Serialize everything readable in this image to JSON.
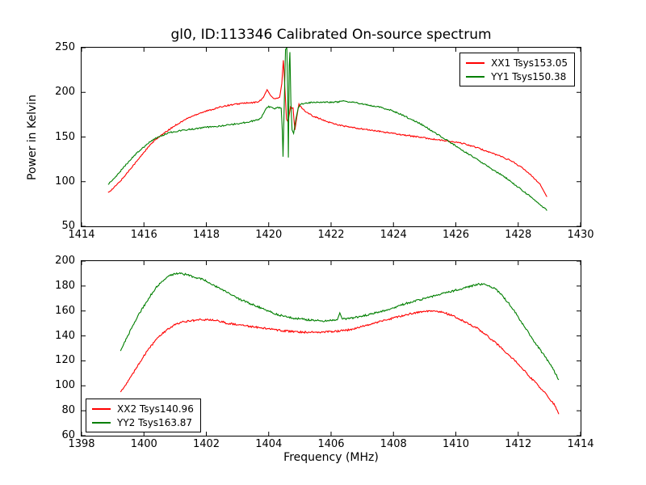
{
  "figure": {
    "title": "gl0, ID:113346 Calibrated On-source spectrum",
    "background": "#ffffff",
    "text_color": "#000000"
  },
  "chart_data": [
    {
      "type": "line",
      "xlabel": "",
      "ylabel": "Power in Kelvin",
      "xlim": [
        1414,
        1430
      ],
      "ylim": [
        50,
        250
      ],
      "xticks": [
        1414,
        1416,
        1418,
        1420,
        1422,
        1424,
        1426,
        1428,
        1430
      ],
      "yticks": [
        50,
        100,
        150,
        200,
        250
      ],
      "grid": false,
      "legend_position": "upper right",
      "series": [
        {
          "name": "XX1 Tsys153.05",
          "color": "#ff0000",
          "points": [
            [
              1414.85,
              88
            ],
            [
              1415.0,
              92
            ],
            [
              1415.2,
              99
            ],
            [
              1415.4,
              107
            ],
            [
              1415.6,
              116
            ],
            [
              1415.8,
              124
            ],
            [
              1416.0,
              133
            ],
            [
              1416.2,
              141
            ],
            [
              1416.4,
              148
            ],
            [
              1416.6,
              153
            ],
            [
              1416.8,
              158
            ],
            [
              1417.0,
              163
            ],
            [
              1417.2,
              167
            ],
            [
              1417.4,
              171
            ],
            [
              1417.6,
              174
            ],
            [
              1417.8,
              177
            ],
            [
              1418.0,
              179
            ],
            [
              1418.2,
              181
            ],
            [
              1418.4,
              183
            ],
            [
              1418.6,
              185
            ],
            [
              1418.8,
              186
            ],
            [
              1419.0,
              187
            ],
            [
              1419.2,
              188
            ],
            [
              1419.4,
              188
            ],
            [
              1419.6,
              189
            ],
            [
              1419.75,
              191
            ],
            [
              1419.85,
              196
            ],
            [
              1419.95,
              203
            ],
            [
              1420.05,
              197
            ],
            [
              1420.15,
              193
            ],
            [
              1420.25,
              193
            ],
            [
              1420.35,
              194
            ],
            [
              1420.42,
              210
            ],
            [
              1420.47,
              236
            ],
            [
              1420.52,
              205
            ],
            [
              1420.57,
              170
            ],
            [
              1420.62,
              167
            ],
            [
              1420.7,
              184
            ],
            [
              1420.78,
              182
            ],
            [
              1420.84,
              158
            ],
            [
              1420.9,
              172
            ],
            [
              1420.97,
              187
            ],
            [
              1421.05,
              183
            ],
            [
              1421.2,
              178
            ],
            [
              1421.4,
              174
            ],
            [
              1421.6,
              171
            ],
            [
              1421.8,
              168
            ],
            [
              1422.0,
              166
            ],
            [
              1422.3,
              163
            ],
            [
              1422.6,
              161
            ],
            [
              1423.0,
              159
            ],
            [
              1423.4,
              157
            ],
            [
              1423.8,
              155
            ],
            [
              1424.2,
              153
            ],
            [
              1424.6,
              151
            ],
            [
              1425.0,
              149
            ],
            [
              1425.4,
              147
            ],
            [
              1425.8,
              145
            ],
            [
              1426.2,
              143
            ],
            [
              1426.6,
              139
            ],
            [
              1427.0,
              134
            ],
            [
              1427.4,
              129
            ],
            [
              1427.8,
              123
            ],
            [
              1428.1,
              116
            ],
            [
              1428.4,
              108
            ],
            [
              1428.7,
              97
            ],
            [
              1428.92,
              83
            ]
          ]
        },
        {
          "name": "YY1 Tsys150.38",
          "color": "#007f00",
          "points": [
            [
              1414.85,
              97
            ],
            [
              1415.0,
              102
            ],
            [
              1415.2,
              110
            ],
            [
              1415.4,
              118
            ],
            [
              1415.6,
              126
            ],
            [
              1415.8,
              133
            ],
            [
              1416.0,
              139
            ],
            [
              1416.2,
              145
            ],
            [
              1416.4,
              149
            ],
            [
              1416.6,
              152
            ],
            [
              1416.8,
              155
            ],
            [
              1417.0,
              156
            ],
            [
              1417.3,
              158
            ],
            [
              1417.6,
              159
            ],
            [
              1418.0,
              161
            ],
            [
              1418.4,
              162
            ],
            [
              1418.8,
              164
            ],
            [
              1419.2,
              166
            ],
            [
              1419.5,
              168
            ],
            [
              1419.7,
              170
            ],
            [
              1419.8,
              174
            ],
            [
              1419.9,
              181
            ],
            [
              1420.0,
              184
            ],
            [
              1420.1,
              183
            ],
            [
              1420.2,
              182
            ],
            [
              1420.3,
              183
            ],
            [
              1420.4,
              183
            ],
            [
              1420.44,
              155
            ],
            [
              1420.46,
              128
            ],
            [
              1420.5,
              190
            ],
            [
              1420.54,
              248
            ],
            [
              1420.58,
              250
            ],
            [
              1420.61,
              200
            ],
            [
              1420.63,
              127
            ],
            [
              1420.66,
              230
            ],
            [
              1420.68,
              245
            ],
            [
              1420.71,
              190
            ],
            [
              1420.75,
              158
            ],
            [
              1420.8,
              154
            ],
            [
              1420.87,
              170
            ],
            [
              1420.95,
              183
            ],
            [
              1421.05,
              187
            ],
            [
              1421.2,
              188
            ],
            [
              1421.5,
              189
            ],
            [
              1421.8,
              189
            ],
            [
              1422.1,
              189
            ],
            [
              1422.4,
              190
            ],
            [
              1422.7,
              189
            ],
            [
              1423.0,
              187
            ],
            [
              1423.3,
              185
            ],
            [
              1423.6,
              183
            ],
            [
              1423.9,
              180
            ],
            [
              1424.2,
              176
            ],
            [
              1424.5,
              171
            ],
            [
              1424.8,
              166
            ],
            [
              1425.1,
              160
            ],
            [
              1425.4,
              153
            ],
            [
              1425.7,
              147
            ],
            [
              1426.0,
              140
            ],
            [
              1426.3,
              133
            ],
            [
              1426.6,
              127
            ],
            [
              1426.9,
              120
            ],
            [
              1427.2,
              113
            ],
            [
              1427.5,
              107
            ],
            [
              1427.8,
              99
            ],
            [
              1428.1,
              91
            ],
            [
              1428.4,
              83
            ],
            [
              1428.7,
              74
            ],
            [
              1428.92,
              68
            ]
          ]
        }
      ]
    },
    {
      "type": "line",
      "xlabel": "Frequency (MHz)",
      "ylabel": "",
      "xlim": [
        1398,
        1414
      ],
      "ylim": [
        60,
        200
      ],
      "xticks": [
        1398,
        1400,
        1402,
        1404,
        1406,
        1408,
        1410,
        1412,
        1414
      ],
      "yticks": [
        60,
        80,
        100,
        120,
        140,
        160,
        180,
        200
      ],
      "grid": false,
      "legend_position": "lower left",
      "series": [
        {
          "name": "XX2 Tsys140.96",
          "color": "#ff0000",
          "points": [
            [
              1399.25,
              95
            ],
            [
              1399.4,
              100
            ],
            [
              1399.6,
              108
            ],
            [
              1399.8,
              116
            ],
            [
              1400.0,
              124
            ],
            [
              1400.2,
              131
            ],
            [
              1400.4,
              137
            ],
            [
              1400.6,
              142
            ],
            [
              1400.8,
              146
            ],
            [
              1401.0,
              149
            ],
            [
              1401.2,
              151
            ],
            [
              1401.5,
              152
            ],
            [
              1401.8,
              153
            ],
            [
              1402.1,
              153
            ],
            [
              1402.4,
              152
            ],
            [
              1402.7,
              150
            ],
            [
              1403.0,
              149
            ],
            [
              1403.3,
              148
            ],
            [
              1403.6,
              147
            ],
            [
              1403.9,
              146
            ],
            [
              1404.2,
              145
            ],
            [
              1404.5,
              144
            ],
            [
              1404.8,
              143.5
            ],
            [
              1405.1,
              143
            ],
            [
              1405.4,
              143
            ],
            [
              1405.7,
              143
            ],
            [
              1406.0,
              143.5
            ],
            [
              1406.3,
              144
            ],
            [
              1406.6,
              145
            ],
            [
              1406.9,
              147
            ],
            [
              1407.2,
              149
            ],
            [
              1407.5,
              151
            ],
            [
              1407.8,
              153
            ],
            [
              1408.1,
              155
            ],
            [
              1408.4,
              157
            ],
            [
              1408.7,
              158.5
            ],
            [
              1409.0,
              160
            ],
            [
              1409.2,
              160
            ],
            [
              1409.45,
              159.5
            ],
            [
              1409.7,
              158
            ],
            [
              1410.0,
              155
            ],
            [
              1410.3,
              151
            ],
            [
              1410.7,
              146
            ],
            [
              1411.0,
              140
            ],
            [
              1411.3,
              134
            ],
            [
              1411.6,
              127
            ],
            [
              1411.9,
              120
            ],
            [
              1412.2,
              112
            ],
            [
              1412.5,
              104
            ],
            [
              1412.8,
              96
            ],
            [
              1413.0,
              90
            ],
            [
              1413.15,
              85
            ],
            [
              1413.3,
              78
            ]
          ]
        },
        {
          "name": "YY2 Tsys163.87",
          "color": "#007f00",
          "points": [
            [
              1399.25,
              128
            ],
            [
              1399.4,
              136
            ],
            [
              1399.6,
              146
            ],
            [
              1399.8,
              156
            ],
            [
              1400.0,
              164
            ],
            [
              1400.2,
              172
            ],
            [
              1400.4,
              179
            ],
            [
              1400.6,
              184
            ],
            [
              1400.8,
              188
            ],
            [
              1401.0,
              190
            ],
            [
              1401.2,
              190
            ],
            [
              1401.4,
              189
            ],
            [
              1401.6,
              187
            ],
            [
              1401.8,
              186
            ],
            [
              1402.0,
              184
            ],
            [
              1402.2,
              181
            ],
            [
              1402.5,
              177
            ],
            [
              1402.8,
              173
            ],
            [
              1403.1,
              169
            ],
            [
              1403.4,
              166
            ],
            [
              1403.7,
              163
            ],
            [
              1404.0,
              160
            ],
            [
              1404.3,
              157
            ],
            [
              1404.6,
              155
            ],
            [
              1404.9,
              154
            ],
            [
              1405.2,
              153
            ],
            [
              1405.5,
              152.5
            ],
            [
              1405.8,
              152
            ],
            [
              1406.0,
              152.5
            ],
            [
              1406.2,
              153
            ],
            [
              1406.28,
              158.5
            ],
            [
              1406.36,
              153.5
            ],
            [
              1406.6,
              154
            ],
            [
              1406.9,
              155.5
            ],
            [
              1407.2,
              157
            ],
            [
              1407.5,
              159
            ],
            [
              1407.8,
              161
            ],
            [
              1408.1,
              163.5
            ],
            [
              1408.4,
              166
            ],
            [
              1408.7,
              168
            ],
            [
              1409.0,
              170
            ],
            [
              1409.3,
              172
            ],
            [
              1409.6,
              174
            ],
            [
              1409.9,
              176
            ],
            [
              1410.2,
              178
            ],
            [
              1410.5,
              180
            ],
            [
              1410.7,
              181.5
            ],
            [
              1410.9,
              181.5
            ],
            [
              1411.1,
              180
            ],
            [
              1411.3,
              177
            ],
            [
              1411.5,
              172
            ],
            [
              1411.7,
              166
            ],
            [
              1411.9,
              159
            ],
            [
              1412.1,
              151
            ],
            [
              1412.3,
              144
            ],
            [
              1412.5,
              136
            ],
            [
              1412.7,
              129
            ],
            [
              1412.9,
              122
            ],
            [
              1413.1,
              114
            ],
            [
              1413.3,
              105
            ]
          ]
        }
      ]
    }
  ]
}
